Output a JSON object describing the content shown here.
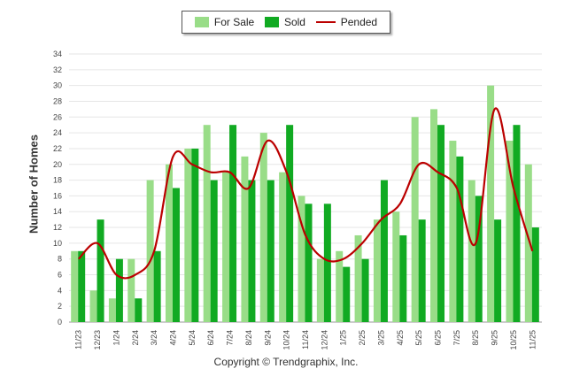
{
  "chart_data": {
    "type": "bar+line",
    "ylabel": "Number of Homes",
    "ylim": [
      0,
      34
    ],
    "yticks": [
      0,
      2,
      4,
      6,
      8,
      10,
      12,
      14,
      16,
      18,
      20,
      22,
      24,
      26,
      28,
      30,
      32,
      34
    ],
    "categories": [
      "11/23",
      "12/23",
      "1/24",
      "2/24",
      "3/24",
      "4/24",
      "5/24",
      "6/24",
      "7/24",
      "8/24",
      "9/24",
      "10/24",
      "11/24",
      "12/24",
      "1/25",
      "2/25",
      "3/25",
      "4/25",
      "5/25",
      "6/25",
      "7/25",
      "8/25",
      "9/25",
      "10/25",
      "11/25"
    ],
    "series": [
      {
        "name": "For Sale",
        "kind": "bar",
        "color": "#99dd88",
        "values": [
          9,
          4,
          3,
          8,
          18,
          20,
          22,
          25,
          19,
          21,
          24,
          19,
          16,
          8,
          9,
          11,
          13,
          14,
          26,
          27,
          23,
          18,
          30,
          23,
          20
        ]
      },
      {
        "name": "Sold",
        "kind": "bar",
        "color": "#11aa22",
        "values": [
          9,
          13,
          8,
          3,
          9,
          17,
          22,
          18,
          25,
          18,
          18,
          25,
          15,
          15,
          7,
          8,
          18,
          11,
          13,
          25,
          21,
          16,
          13,
          25,
          12
        ]
      },
      {
        "name": "Pended",
        "kind": "line",
        "color": "#bb0000",
        "values": [
          8,
          10,
          6,
          6,
          9,
          21,
          20,
          19,
          19,
          17,
          23,
          19,
          11,
          8,
          8,
          10,
          13,
          15,
          20,
          19,
          17,
          10,
          27,
          17,
          9
        ]
      }
    ]
  },
  "legend": {
    "for_sale": "For Sale",
    "sold": "Sold",
    "pended": "Pended"
  },
  "credit": "Copyright © Trendgraphix, Inc."
}
